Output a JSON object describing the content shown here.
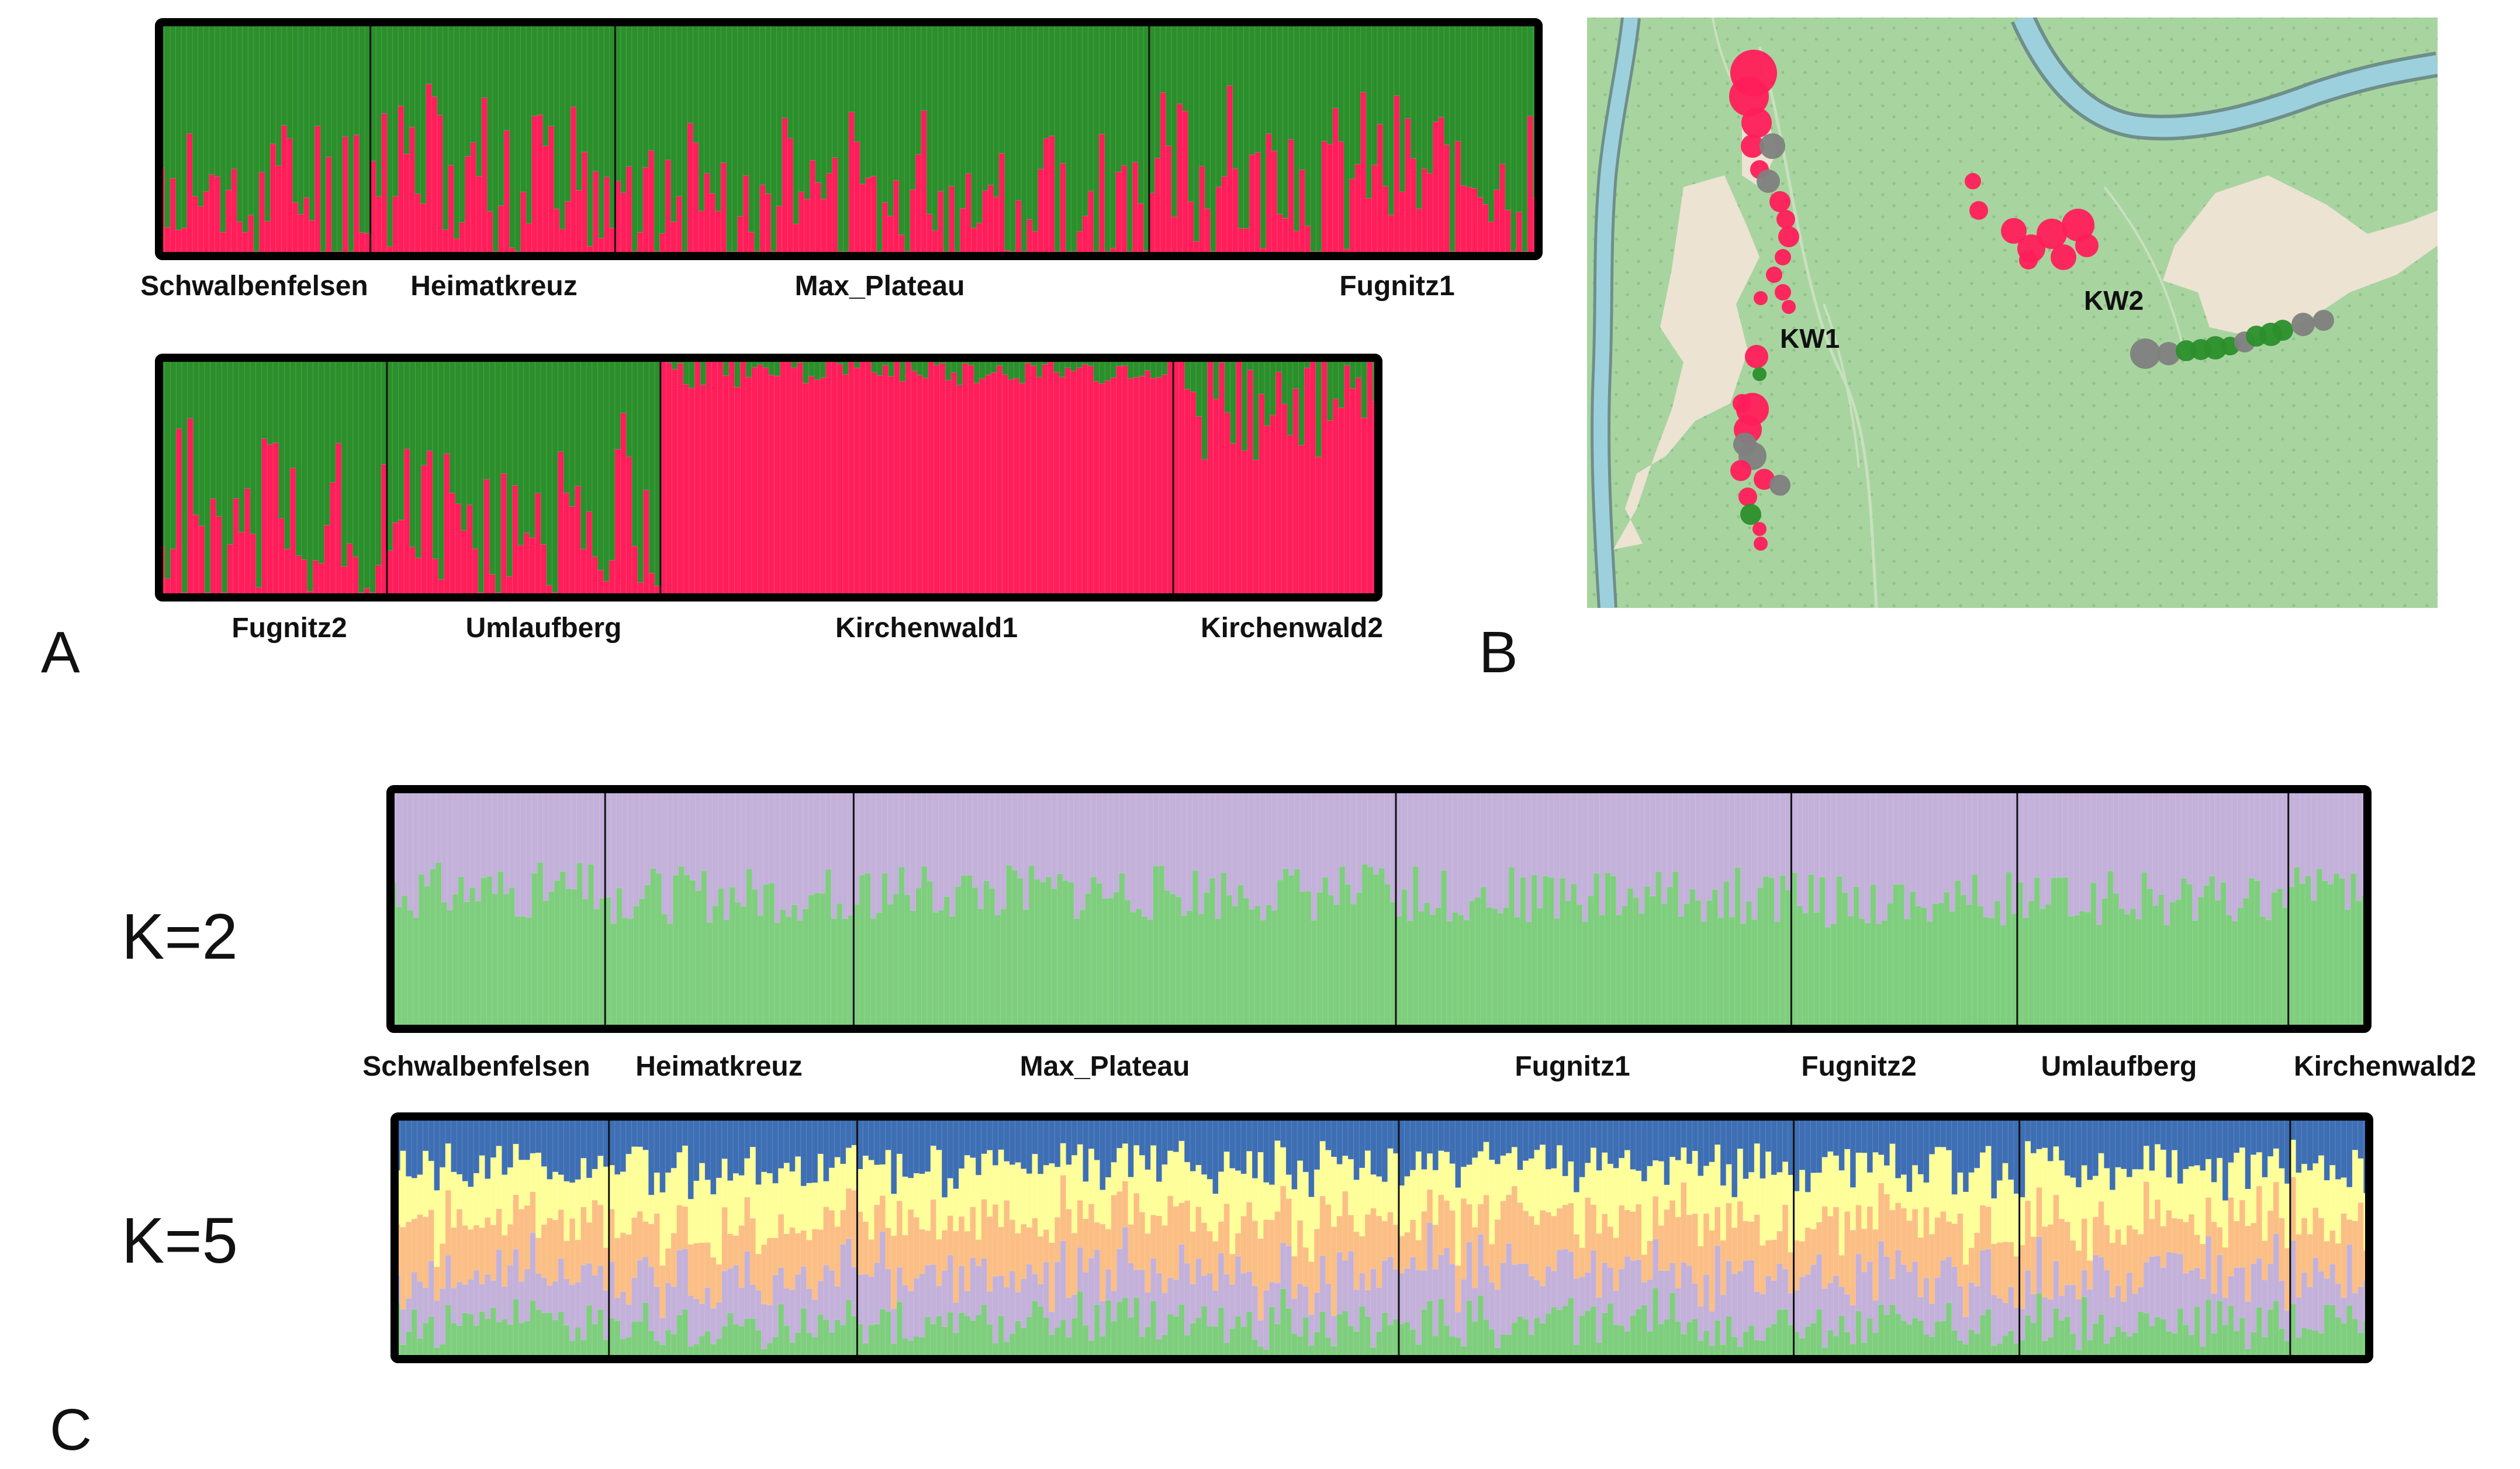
{
  "figure": {
    "panel_labels": [
      "A",
      "B",
      "C"
    ]
  },
  "colors": {
    "red": "#ff1e5a",
    "dark_green": "#2b8f2b",
    "lavender": "#c3b1da",
    "light_green": "#7ece7e",
    "blue": "#3e6fb4",
    "yellow": "#ffff99",
    "orange": "#fbbf85",
    "grey": "#808080",
    "map_bg": "#a8d4a0",
    "river": "#9cd0dc",
    "clearing": "#ede3d3"
  },
  "chart_data": [
    {
      "type": "bar",
      "id": "panel-A-top",
      "stacked": true,
      "title": "",
      "xlabel": "",
      "ylabel": "",
      "ylim": [
        0,
        1
      ],
      "series": [
        {
          "name": "cluster-red",
          "color": "#ff1e5a"
        },
        {
          "name": "cluster-green",
          "color": "#2b8f2b"
        }
      ],
      "groups": [
        {
          "name": "Schwalbenfelsen",
          "n": 38,
          "mean_red": 0.25,
          "spread": 0.4,
          "seed": 11
        },
        {
          "name": "Heimatkreuz",
          "n": 44,
          "mean_red": 0.32,
          "spread": 0.45,
          "seed": 12
        },
        {
          "name": "Max_Plateau",
          "n": 96,
          "mean_red": 0.26,
          "spread": 0.4,
          "seed": 13
        },
        {
          "name": "Fugnitz1",
          "n": 70,
          "mean_red": 0.34,
          "spread": 0.4,
          "seed": 14
        }
      ]
    },
    {
      "type": "bar",
      "id": "panel-A-bottom",
      "stacked": true,
      "title": "",
      "xlabel": "",
      "ylabel": "",
      "ylim": [
        0,
        1
      ],
      "series": [
        {
          "name": "cluster-red",
          "color": "#ff1e5a"
        },
        {
          "name": "cluster-green",
          "color": "#2b8f2b"
        }
      ],
      "groups": [
        {
          "name": "Fugnitz2",
          "n": 40,
          "mean_red": 0.3,
          "spread": 0.45,
          "seed": 21
        },
        {
          "name": "Umlaufberg",
          "n": 48,
          "mean_red": 0.34,
          "spread": 0.45,
          "seed": 22
        },
        {
          "name": "Kirchenwald1",
          "n": 90,
          "mean_red": 0.95,
          "spread": 0.08,
          "seed": 23
        },
        {
          "name": "Kirchenwald2",
          "n": 36,
          "mean_red": 0.85,
          "spread": 0.3,
          "seed": 24
        }
      ]
    },
    {
      "type": "bar",
      "id": "panel-C-K2",
      "stacked": true,
      "title": "K=2",
      "xlabel": "",
      "ylabel": "",
      "ylim": [
        0,
        1
      ],
      "series": [
        {
          "name": "cluster-1",
          "color": "#7ece7e"
        },
        {
          "name": "cluster-2",
          "color": "#c3b1da"
        }
      ],
      "groups": [
        {
          "name": "Schwalbenfelsen",
          "n": 38,
          "mean_c1": 0.58,
          "spread": 0.12,
          "seed": 31
        },
        {
          "name": "Heimatkreuz",
          "n": 44,
          "mean_c1": 0.56,
          "spread": 0.12,
          "seed": 32
        },
        {
          "name": "Max_Plateau",
          "n": 96,
          "mean_c1": 0.57,
          "spread": 0.12,
          "seed": 33
        },
        {
          "name": "Fugnitz1",
          "n": 70,
          "mean_c1": 0.56,
          "spread": 0.12,
          "seed": 34
        },
        {
          "name": "Fugnitz2",
          "n": 40,
          "mean_c1": 0.54,
          "spread": 0.12,
          "seed": 35
        },
        {
          "name": "Umlaufberg",
          "n": 48,
          "mean_c1": 0.54,
          "spread": 0.12,
          "seed": 36
        },
        {
          "name": "Kirchenwald2",
          "n": 14,
          "mean_c1": 0.56,
          "spread": 0.12,
          "seed": 37
        }
      ]
    },
    {
      "type": "bar",
      "id": "panel-C-K5",
      "stacked": true,
      "title": "K=5",
      "xlabel": "",
      "ylabel": "",
      "ylim": [
        0,
        1
      ],
      "series": [
        {
          "name": "cluster-green",
          "color": "#7ece7e",
          "mean": 0.15
        },
        {
          "name": "cluster-lavender",
          "color": "#c3b1da",
          "mean": 0.2
        },
        {
          "name": "cluster-orange",
          "color": "#fbbf85",
          "mean": 0.22
        },
        {
          "name": "cluster-yellow",
          "color": "#ffff99",
          "mean": 0.22
        },
        {
          "name": "cluster-blue",
          "color": "#3e6fb4",
          "mean": 0.21
        }
      ],
      "groups": [
        {
          "name": "Schwalbenfelsen",
          "n": 38,
          "seed": 41
        },
        {
          "name": "Heimatkreuz",
          "n": 44,
          "seed": 42
        },
        {
          "name": "Max_Plateau",
          "n": 96,
          "seed": 43
        },
        {
          "name": "Fugnitz1",
          "n": 70,
          "seed": 44
        },
        {
          "name": "Fugnitz2",
          "n": 40,
          "seed": 45
        },
        {
          "name": "Umlaufberg",
          "n": 48,
          "seed": 46
        },
        {
          "name": "Kirchenwald2",
          "n": 14,
          "seed": 47
        }
      ]
    }
  ],
  "map": {
    "labels": [
      "KW1",
      "KW2"
    ]
  }
}
